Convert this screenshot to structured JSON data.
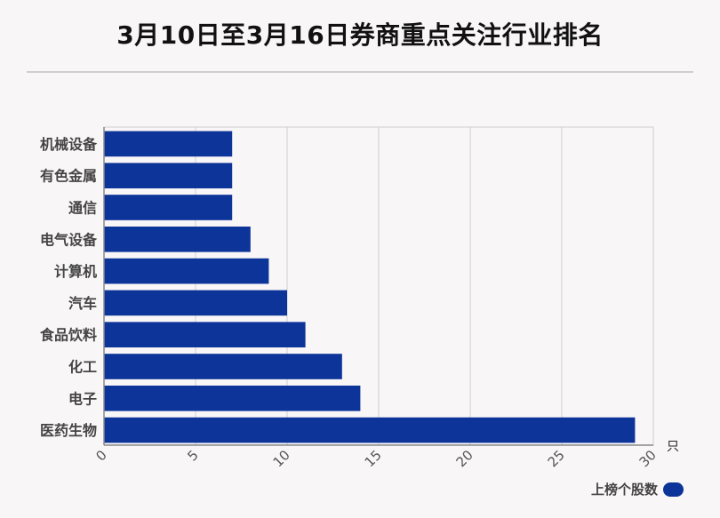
{
  "title": "3月10日至3月16日券商重点关注行业排名",
  "colors": {
    "bar": "#0d3499",
    "grid": "#d0d0d0",
    "axis": "#888888"
  },
  "chart_data": {
    "type": "bar",
    "orientation": "horizontal",
    "categories": [
      "机械设备",
      "有色金属",
      "通信",
      "电气设备",
      "计算机",
      "汽车",
      "食品饮料",
      "化工",
      "电子",
      "医药生物"
    ],
    "series": [
      {
        "name": "上榜个股数",
        "values": [
          7,
          7,
          7,
          8,
          9,
          10,
          11,
          13,
          14,
          29
        ]
      }
    ],
    "xticks": [
      "0",
      "5",
      "10",
      "15",
      "20",
      "25",
      "30"
    ],
    "xlim": [
      0,
      30
    ],
    "x_unit": "只",
    "grid": true,
    "legend": "bottom-right"
  }
}
